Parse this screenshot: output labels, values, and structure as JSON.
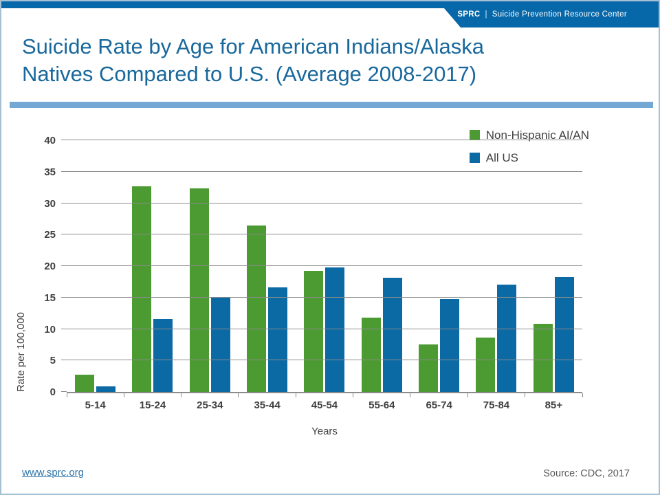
{
  "header": {
    "brand": "SPRC",
    "separator": "|",
    "org_name": "Suicide Prevention Resource Center"
  },
  "title": {
    "line1": "Suicide Rate by Age for American Indians/Alaska",
    "line2": "Natives Compared to U.S. (Average 2008-2017)"
  },
  "chart_data": {
    "type": "bar",
    "title": "Suicide Rate by Age for American Indians/Alaska Natives Compared to U.S. (Average 2008-2017)",
    "categories": [
      "5-14",
      "15-24",
      "25-34",
      "35-44",
      "45-54",
      "55-64",
      "65-74",
      "75-84",
      "85+"
    ],
    "series": [
      {
        "name": "Non-Hispanic AI/AN",
        "color": "#4C9A32",
        "values": [
          2.7,
          32.7,
          32.3,
          26.4,
          19.2,
          11.8,
          7.5,
          8.6,
          10.8
        ]
      },
      {
        "name": "All US",
        "color": "#0B69A4",
        "values": [
          0.9,
          11.6,
          15.0,
          16.6,
          19.8,
          18.1,
          14.8,
          17.1,
          18.3
        ]
      }
    ],
    "xlabel": "Years",
    "ylabel": "Rate per 100,000",
    "ylim": [
      0,
      40
    ],
    "yticks": [
      0,
      5,
      10,
      15,
      20,
      25,
      30,
      35,
      40
    ],
    "grid": true,
    "legend_position": "top-right"
  },
  "footer": {
    "link": "www.sprc.org",
    "source": "Source: CDC, 2017"
  },
  "colors": {
    "banner_blue": "#0768A9",
    "title_blue": "#19689C",
    "divider_blue": "#72A8D3",
    "bar_green": "#4C9A32",
    "bar_blue": "#0B69A4",
    "gridline": "#8C8C8C",
    "axis_text": "#3F3F3F",
    "source_text": "#595959",
    "link_blue": "#2E74A8",
    "slide_border": "#A6C0D3"
  }
}
